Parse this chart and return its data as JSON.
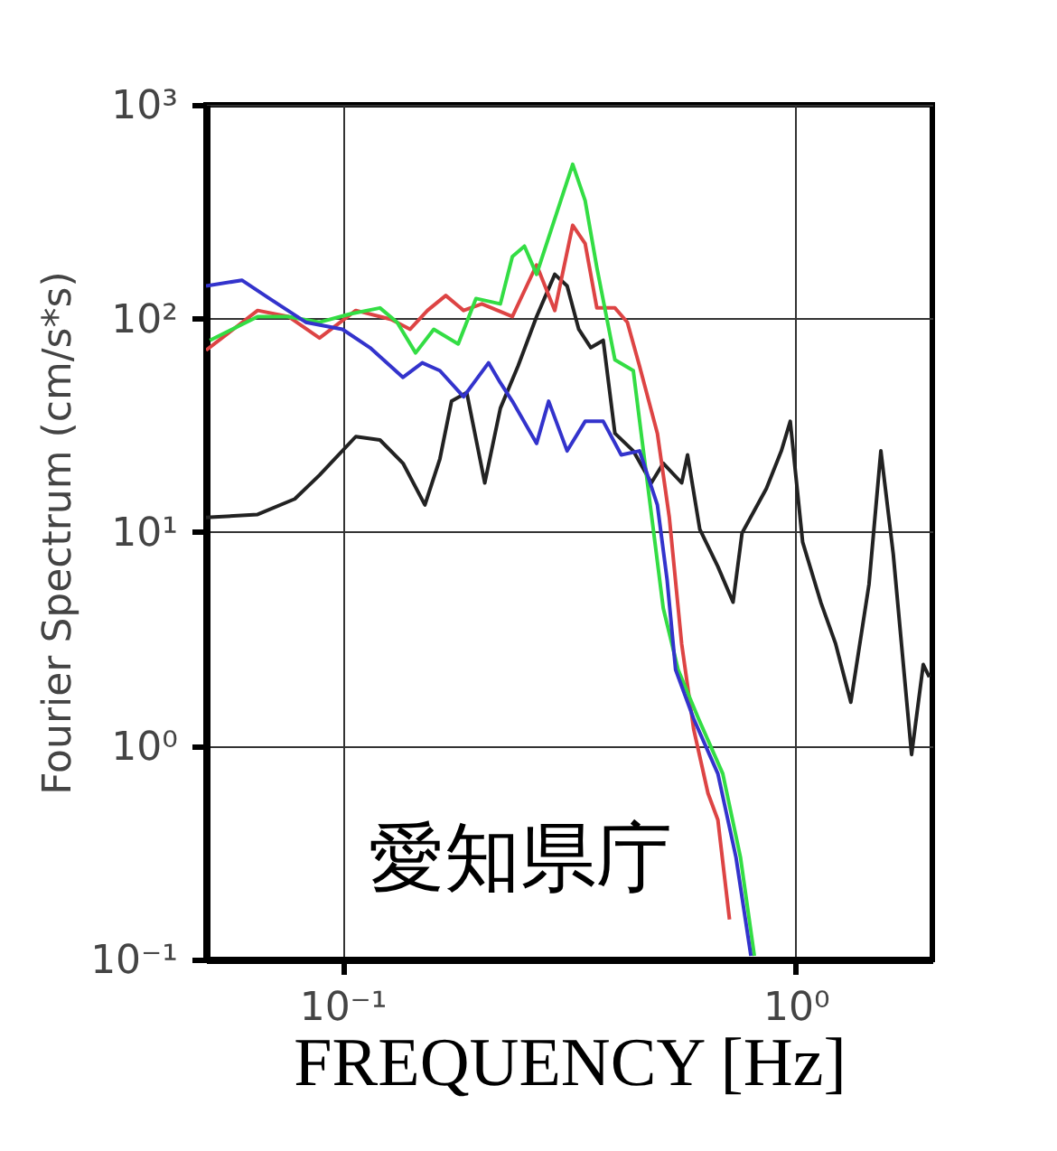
{
  "chart_data": {
    "type": "line",
    "xlabel": "FREQUENCY [Hz]",
    "ylabel": "Fourier Spectrum (cm/s*s)",
    "annotations": [
      "愛知県庁"
    ],
    "log": "xy",
    "grid": true,
    "legend": false,
    "marker": "none",
    "line_style": "solid",
    "xlim": [
      0.05,
      2
    ],
    "ylim": [
      0.1,
      1000
    ],
    "xticks": [
      {
        "value": 0.1,
        "label": "10⁻¹"
      },
      {
        "value": 1,
        "label": "10⁰"
      }
    ],
    "yticks": [
      {
        "value": 0.1,
        "label": "10⁻¹"
      },
      {
        "value": 1,
        "label": "10⁰"
      },
      {
        "value": 10,
        "label": "10¹"
      },
      {
        "value": 100,
        "label": "10²"
      },
      {
        "value": 1000,
        "label": "10³"
      }
    ],
    "series": [
      {
        "color": "#222222",
        "x": [
          0.05,
          0.065,
          0.0785,
          0.089,
          0.107,
          0.121,
          0.136,
          0.152,
          0.164,
          0.174,
          0.188,
          0.206,
          0.223,
          0.244,
          0.268,
          0.294,
          0.313,
          0.332,
          0.353,
          0.376,
          0.399,
          0.438,
          0.48,
          0.51,
          0.56,
          0.577,
          0.614,
          0.673,
          0.727,
          0.761,
          0.861,
          0.929,
          0.972,
          1.035,
          1.135,
          1.224,
          1.322,
          1.45,
          1.54,
          1.64,
          1.8,
          1.91,
          1.97
        ],
        "values": [
          11.7,
          12.1,
          14.3,
          18.5,
          28,
          27,
          21,
          13.4,
          22,
          41,
          45,
          17,
          38,
          60,
          102,
          161,
          142,
          89,
          73,
          79,
          29,
          24,
          17,
          21,
          17,
          23,
          10.3,
          6.9,
          4.7,
          9.9,
          16,
          24,
          33,
          9.0,
          4.7,
          3.0,
          1.6,
          5.7,
          24,
          7.9,
          0.91,
          2.4,
          2.1
        ]
      },
      {
        "color": "#dd4444",
        "x": [
          0.05,
          0.065,
          0.076,
          0.089,
          0.107,
          0.128,
          0.141,
          0.154,
          0.169,
          0.185,
          0.203,
          0.237,
          0.268,
          0.294,
          0.322,
          0.343,
          0.364,
          0.399,
          0.425,
          0.452,
          0.495,
          0.526,
          0.56,
          0.595,
          0.64,
          0.673,
          0.714
        ],
        "values": [
          71,
          109,
          102,
          81,
          109,
          99,
          89,
          109,
          128,
          109,
          117,
          102,
          178,
          109,
          273,
          224,
          112,
          112,
          96,
          60,
          29,
          11.7,
          3,
          1.2,
          0.6,
          0.45,
          0.154
        ]
      },
      {
        "color": "#33dd44",
        "x": [
          0.051,
          0.065,
          0.076,
          0.089,
          0.104,
          0.121,
          0.132,
          0.145,
          0.159,
          0.18,
          0.197,
          0.223,
          0.237,
          0.252,
          0.268,
          0.303,
          0.322,
          0.343,
          0.364,
          0.399,
          0.438,
          0.455,
          0.51,
          0.55,
          0.61,
          0.69,
          0.755,
          0.81
        ],
        "values": [
          79,
          102,
          102,
          96,
          105,
          112,
          96,
          69,
          89,
          76,
          124,
          117,
          195,
          218,
          161,
          356,
          527,
          356,
          173,
          64,
          57,
          30,
          4.4,
          2.27,
          1.34,
          0.74,
          0.3,
          0.104
        ]
      },
      {
        "color": "#3333cc",
        "x": [
          0.05,
          0.06,
          0.069,
          0.083,
          0.1,
          0.115,
          0.136,
          0.15,
          0.164,
          0.185,
          0.21,
          0.223,
          0.237,
          0.268,
          0.285,
          0.313,
          0.343,
          0.376,
          0.412,
          0.452,
          0.495,
          0.52,
          0.543,
          0.595,
          0.673,
          0.738,
          0.796
        ],
        "values": [
          142,
          151,
          124,
          96,
          89,
          73,
          53,
          62,
          57,
          43,
          62,
          50,
          41,
          26,
          41,
          24,
          33,
          33,
          23,
          24,
          13.4,
          6,
          2.27,
          1.34,
          0.74,
          0.3,
          0.104
        ]
      }
    ]
  }
}
